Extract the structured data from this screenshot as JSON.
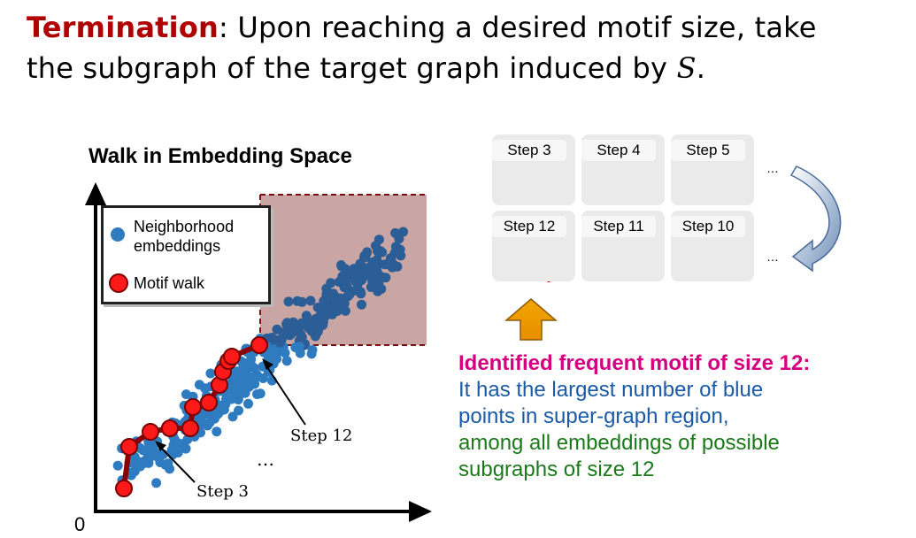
{
  "title": {
    "keyword": "Termination",
    "text_line1": ": Upon reaching a desired motif size, take",
    "text_line2": "the subgraph of the target graph induced by ",
    "var": "S",
    "end": "."
  },
  "chart": {
    "title": "Walk in Embedding Space",
    "origin_label": "0",
    "legend": {
      "neighborhood_line1": "Neighborhood",
      "neighborhood_line2": "embeddings",
      "motif_walk": "Motif walk"
    },
    "annotations": {
      "step12": "Step 12",
      "step3": "Step 3",
      "ellipsis": "…"
    },
    "colors": {
      "blue": "#2f7bc0",
      "red": "#ff1a1a",
      "walk": "#8b0000",
      "region": "#c9a6a4"
    }
  },
  "steps_top": [
    "Step 3",
    "Step 4",
    "Step 5"
  ],
  "steps_bottom": [
    "Step 12",
    "Step 11",
    "Step 10"
  ],
  "ellipsis": "…",
  "description": {
    "line1": "Identified frequent motif of size 12:",
    "line2": "It has the largest number of blue",
    "line3": "points in super-graph region,",
    "line4": "among all embeddings of possible",
    "line5": "subgraphs of size 12"
  }
}
